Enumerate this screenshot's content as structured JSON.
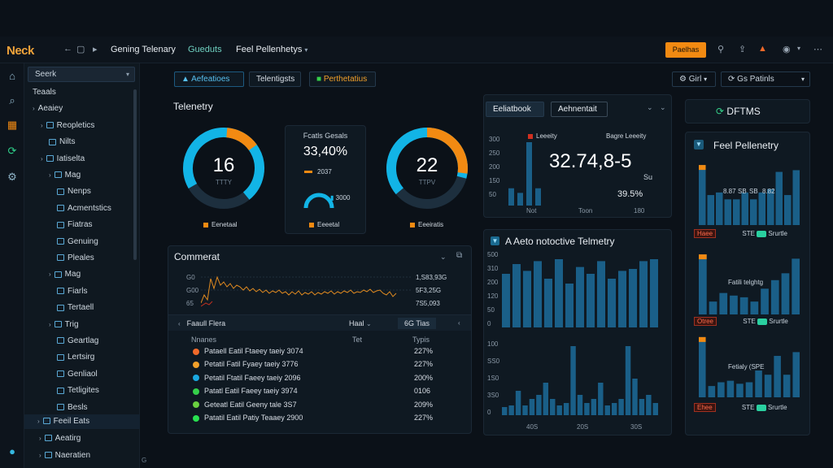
{
  "topbar": {
    "logo": "Neck",
    "title": "Gening Telenary",
    "link": "Gueduts",
    "menu": "Feel Pellenhetys",
    "button": "Paelhas"
  },
  "sidebar": {
    "search": "Seerk",
    "items": [
      {
        "label": "Teaals",
        "indent": 0,
        "chev": ""
      },
      {
        "label": "Aeaiey",
        "indent": 0,
        "chev": "›"
      },
      {
        "label": "Reopletics",
        "indent": 1,
        "chev": "›"
      },
      {
        "label": "Nilts",
        "indent": 2,
        "chev": ""
      },
      {
        "label": "Iatiselta",
        "indent": 1,
        "chev": "›"
      },
      {
        "label": "Mag",
        "indent": 2,
        "chev": "›"
      },
      {
        "label": "Nenps",
        "indent": 3,
        "chev": ""
      },
      {
        "label": "Acmentstics",
        "indent": 3,
        "chev": ""
      },
      {
        "label": "Fiatras",
        "indent": 3,
        "chev": ""
      },
      {
        "label": "Genuing",
        "indent": 3,
        "chev": ""
      },
      {
        "label": "Pleales",
        "indent": 3,
        "chev": ""
      },
      {
        "label": "Mag",
        "indent": 2,
        "chev": "›"
      },
      {
        "label": "Fiarls",
        "indent": 3,
        "chev": ""
      },
      {
        "label": "Tertaell",
        "indent": 3,
        "chev": ""
      },
      {
        "label": "Trig",
        "indent": 2,
        "chev": "›"
      },
      {
        "label": "Geartlag",
        "indent": 3,
        "chev": ""
      },
      {
        "label": "Lertsirg",
        "indent": 3,
        "chev": ""
      },
      {
        "label": "Genliaol",
        "indent": 3,
        "chev": ""
      },
      {
        "label": "Tetligites",
        "indent": 3,
        "chev": ""
      },
      {
        "label": "Besls",
        "indent": 3,
        "chev": ""
      }
    ],
    "bottom": [
      {
        "label": "Feeil Eats"
      },
      {
        "label": "Aeatirg"
      },
      {
        "label": "Naeratien"
      }
    ]
  },
  "tabs": [
    "Aefeatioes",
    "Telentigsts",
    "Perthetatius"
  ],
  "controls": {
    "sel1": "Girl",
    "sel2": "Gs Patinls"
  },
  "telemetry": {
    "title": "Telenetry",
    "gauge1": {
      "value": "16",
      "sub": "TTTY",
      "legend": "Eenetaal"
    },
    "center": {
      "label": "Fcatls Gesals",
      "value": "33,40%",
      "sub": "2037",
      "gauge_val": "3000",
      "legend": "Eeeetal"
    },
    "gauge2": {
      "value": "22",
      "sub": "TTPV",
      "legend": "Eeeiratis"
    }
  },
  "comment": {
    "title": "Commerat",
    "yaxis": [
      "G0",
      "G00",
      "65"
    ],
    "right_values": [
      "1,S83,93G",
      "5F3,25G",
      "7S5,093"
    ],
    "table_header": {
      "toggle": "Faaull Flera",
      "col_a": "Haal",
      "col_b": "Tet",
      "col_c": "6G Tias"
    },
    "sub_header": {
      "name": "Nnanes",
      "type": "Typis"
    },
    "rows": [
      {
        "name": "Pataell Eatil Ftaeey taeiy 3074",
        "value": "227%",
        "color": "#f26a2a"
      },
      {
        "name": "Petatil Fatil Fyaey taeiy 3776",
        "value": "227%",
        "color": "#f2a02a"
      },
      {
        "name": "Petatil Ftatil Faeey taeiy 2096",
        "value": "200%",
        "color": "#1aa8e0"
      },
      {
        "name": "Patatl Eatil Faeey taeiy 3974",
        "value": "0106",
        "color": "#35d04a"
      },
      {
        "name": "Geteatl Eatil Geeny tale 3S7",
        "value": "209%",
        "color": "#6ad040"
      },
      {
        "name": "Patatil Eatil Patiy Teaaey 2900",
        "value": "227%",
        "color": "#28e050"
      }
    ]
  },
  "mid_top": {
    "tab1": "Eeliatbook",
    "tab2": "Aehnentait",
    "legend1": "Leeeity",
    "legend2": "Bagre Leeeity",
    "yaxis": [
      "300",
      "250",
      "200",
      "150",
      "50"
    ],
    "xaxis": [
      "Not",
      "Toon",
      "180"
    ],
    "big": "32.74,8-5",
    "unit": "Su",
    "pct": "39.5%",
    "bars": [
      30,
      22,
      110,
      30
    ]
  },
  "auto": {
    "title": "A Aeto notoctive Telmetry",
    "yaxis_top": [
      "500",
      "310",
      "200",
      "120",
      "50",
      "0"
    ],
    "yaxis_bot": [
      "100",
      "SS0",
      "1S0",
      "3S0",
      "0"
    ],
    "xaxis": [
      "40S",
      "20S",
      "30S"
    ],
    "bars_top": [
      55,
      65,
      58,
      68,
      50,
      70,
      45,
      62,
      55,
      68,
      50,
      58,
      60,
      68,
      70
    ],
    "bars_bot": [
      10,
      12,
      30,
      12,
      20,
      25,
      40,
      20,
      12,
      15,
      85,
      25,
      15,
      20,
      40,
      12,
      15,
      20,
      85,
      45,
      20,
      25,
      15
    ]
  },
  "right": {
    "top_label": "DFTMS",
    "title": "Feel Pellenetry",
    "c1_labels": [
      "8.87",
      "SB",
      "SB",
      "8.82"
    ],
    "c1_badges": [
      "Haee",
      "STE",
      "Srurtle"
    ],
    "c2_label": "Fatili telghtg",
    "c2_badges": [
      "Otree",
      "STE",
      "Srurtle"
    ],
    "c3_label": "Fetialy (SPE",
    "c3_badges": [
      "Ehee",
      "STE",
      "Srurtle"
    ],
    "c1_bars": [
      70,
      35,
      38,
      30,
      30,
      38,
      30,
      38,
      42,
      62,
      35,
      64
    ],
    "c2_bars": [
      70,
      15,
      25,
      22,
      20,
      15,
      30,
      40,
      48,
      65
    ],
    "c3_bars": [
      80,
      15,
      20,
      22,
      18,
      20,
      40,
      30,
      55,
      30,
      60
    ]
  }
}
